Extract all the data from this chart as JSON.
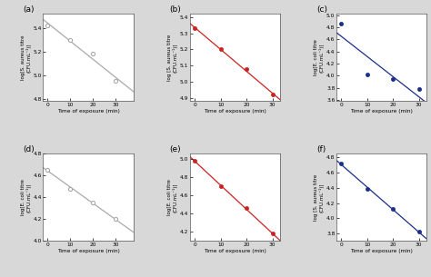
{
  "panels": [
    {
      "label": "(a)",
      "ylabel": "log[S. aureus titre\n(CFU.mL⁻¹)]",
      "color": "#aaaaaa",
      "filled": false,
      "x": [
        0,
        10,
        20,
        30
      ],
      "y": [
        5.42,
        5.3,
        5.18,
        4.95
      ],
      "xlim": [
        -2,
        38
      ],
      "ylim": [
        4.78,
        5.52
      ],
      "yticks": [
        4.8,
        5.0,
        5.2,
        5.4
      ],
      "xticks": [
        0,
        10,
        20,
        30
      ],
      "xticklabels": [
        "0",
        "10",
        "20",
        "30"
      ]
    },
    {
      "label": "(b)",
      "ylabel": "log [S. aureus titre\n(CFU.mL⁻¹)]",
      "color": "#cc2222",
      "filled": true,
      "x": [
        0,
        10,
        20,
        30
      ],
      "y": [
        5.33,
        5.2,
        5.08,
        4.92
      ],
      "xlim": [
        -2,
        33
      ],
      "ylim": [
        4.88,
        5.42
      ],
      "yticks": [
        4.9,
        5.0,
        5.1,
        5.2,
        5.3,
        5.4
      ],
      "xticks": [
        0,
        10,
        20,
        30
      ],
      "xticklabels": [
        "0",
        "10",
        "20",
        "30"
      ]
    },
    {
      "label": "(c)",
      "ylabel": "log[E. coli titre\n(CFU.mL⁻¹)]",
      "color": "#1a2f8c",
      "filled": true,
      "x": [
        0,
        10,
        20,
        30
      ],
      "y": [
        4.86,
        4.02,
        3.94,
        3.78
      ],
      "xlim": [
        -2,
        33
      ],
      "ylim": [
        3.58,
        5.02
      ],
      "yticks": [
        3.6,
        3.8,
        4.0,
        4.2,
        4.4,
        4.6,
        4.8,
        5.0
      ],
      "xticks": [
        0,
        10,
        20,
        30
      ],
      "xticklabels": [
        "0",
        "10",
        "20",
        "30"
      ]
    },
    {
      "label": "(d)",
      "ylabel": "log[E. coli titre\n(CFU.mL⁻¹)]",
      "color": "#aaaaaa",
      "filled": false,
      "x": [
        0,
        10,
        20,
        30
      ],
      "y": [
        4.65,
        4.48,
        4.35,
        4.2
      ],
      "xlim": [
        -2,
        38
      ],
      "ylim": [
        4.0,
        4.78
      ],
      "yticks": [
        4.0,
        4.2,
        4.4,
        4.6,
        4.8
      ],
      "xticks": [
        0,
        10,
        20,
        30
      ],
      "xticklabels": [
        "0",
        "10",
        "20",
        "30"
      ]
    },
    {
      "label": "(e)",
      "ylabel": "log[E. coli titre\n(CFU.mL⁻¹)]",
      "color": "#cc2222",
      "filled": true,
      "x": [
        0,
        10,
        20,
        30
      ],
      "y": [
        4.98,
        4.7,
        4.46,
        4.18
      ],
      "xlim": [
        -2,
        33
      ],
      "ylim": [
        4.1,
        5.06
      ],
      "yticks": [
        4.2,
        4.4,
        4.6,
        4.8,
        5.0
      ],
      "xticks": [
        0,
        10,
        20,
        30
      ],
      "xticklabels": [
        "0",
        "10",
        "20",
        "30"
      ]
    },
    {
      "label": "(f)",
      "ylabel": "log [S. aureus titre\n(CFU.mL⁻¹)]",
      "color": "#1a2f8c",
      "filled": true,
      "x": [
        0,
        10,
        20,
        30
      ],
      "y": [
        4.72,
        4.38,
        4.12,
        3.82
      ],
      "xlim": [
        -2,
        33
      ],
      "ylim": [
        3.7,
        4.85
      ],
      "yticks": [
        3.8,
        4.0,
        4.2,
        4.4,
        4.6,
        4.8
      ],
      "xticks": [
        0,
        10,
        20,
        30
      ],
      "xticklabels": [
        "0",
        "10",
        "20",
        "30"
      ]
    }
  ],
  "xlabel": "Time of exposure (min)",
  "fig_bg": "#d8d8d8",
  "plot_bg": "#ffffff"
}
